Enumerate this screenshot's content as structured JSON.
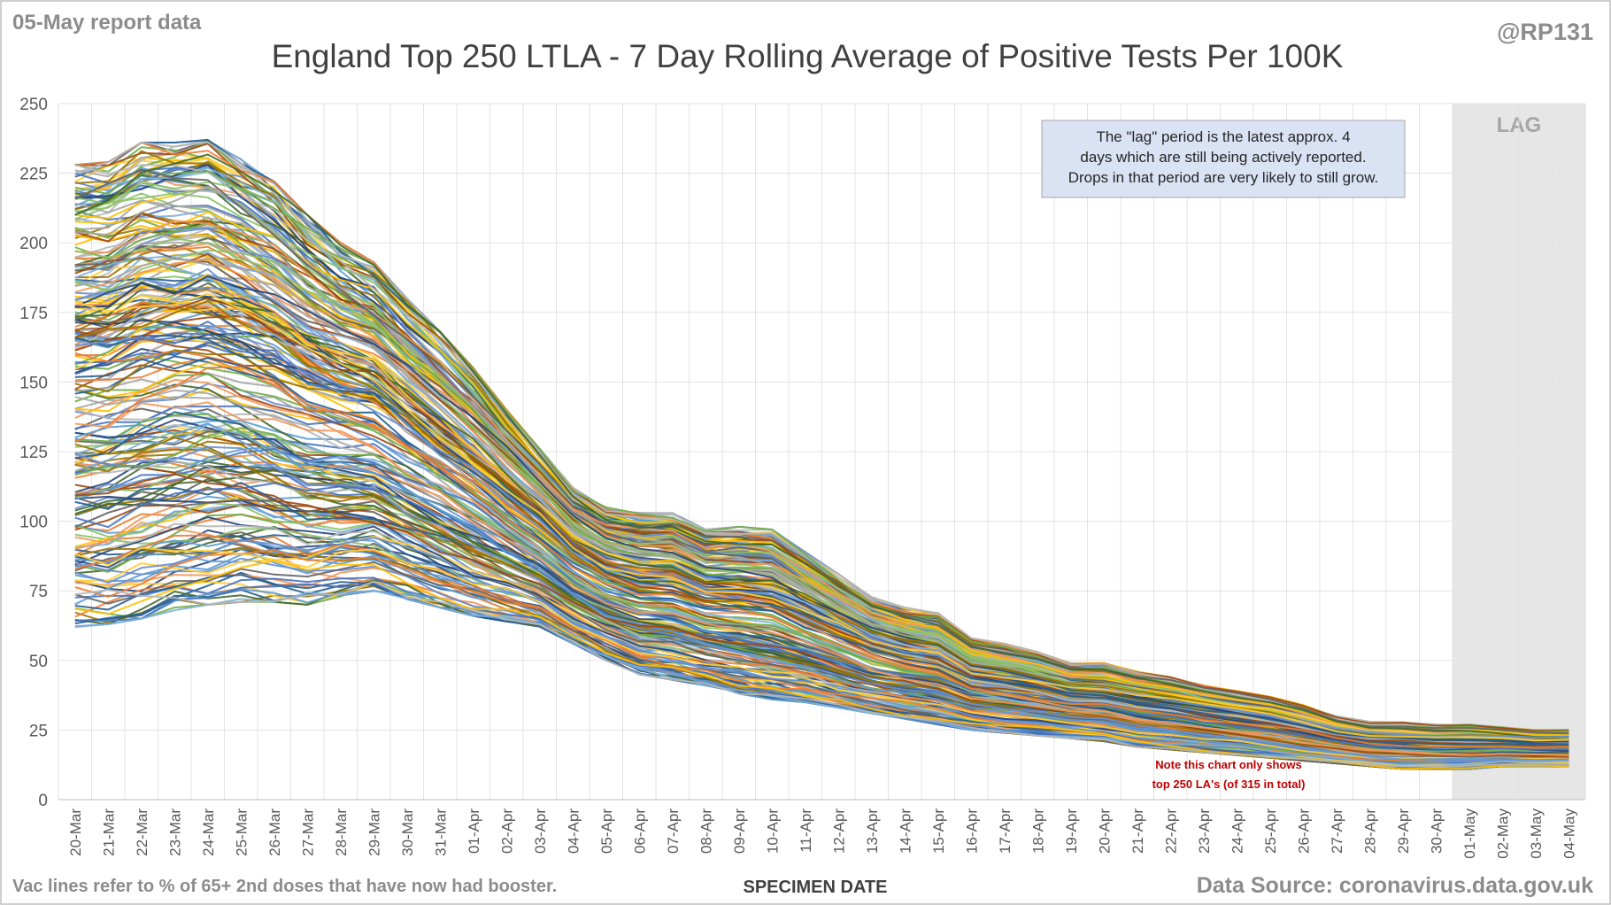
{
  "chart_data": {
    "type": "line",
    "title": "England Top 250 LTLA - 7 Day Rolling Average of Positive Tests Per 100K",
    "report_label": "05-May report data",
    "handle": "@RP131",
    "xlabel": "SPECIMEN DATE",
    "ylabel": "",
    "ylim": [
      0,
      250
    ],
    "yticks": [
      0,
      25,
      50,
      75,
      100,
      125,
      150,
      175,
      200,
      225,
      250
    ],
    "grid": "vertical and horizontal",
    "legend": "none",
    "categories": [
      "20-Mar",
      "21-Mar",
      "22-Mar",
      "23-Mar",
      "24-Mar",
      "25-Mar",
      "26-Mar",
      "27-Mar",
      "28-Mar",
      "29-Mar",
      "30-Mar",
      "31-Mar",
      "01-Apr",
      "02-Apr",
      "03-Apr",
      "04-Apr",
      "05-Apr",
      "06-Apr",
      "07-Apr",
      "08-Apr",
      "09-Apr",
      "10-Apr",
      "11-Apr",
      "12-Apr",
      "13-Apr",
      "14-Apr",
      "15-Apr",
      "16-Apr",
      "17-Apr",
      "18-Apr",
      "19-Apr",
      "20-Apr",
      "21-Apr",
      "22-Apr",
      "23-Apr",
      "24-Apr",
      "25-Apr",
      "26-Apr",
      "27-Apr",
      "28-Apr",
      "29-Apr",
      "30-Apr",
      "01-May",
      "02-May",
      "03-May",
      "04-May"
    ],
    "lag_region": {
      "label": "LAG",
      "from": "01-May",
      "to": "04-May"
    },
    "series_count": 250,
    "series_envelope": {
      "description_values": "approximate upper and lower bounds of the plotted LTLA lines per date",
      "upper": [
        228,
        229,
        236,
        236,
        237,
        230,
        222,
        210,
        200,
        193,
        180,
        168,
        155,
        140,
        126,
        112,
        105,
        103,
        103,
        97,
        98,
        97,
        89,
        81,
        73,
        69,
        67,
        58,
        56,
        53,
        49,
        49,
        46,
        44,
        41,
        39,
        37,
        34,
        30,
        28,
        28,
        27,
        27,
        26,
        25,
        25
      ],
      "lower": [
        62,
        63,
        65,
        68,
        70,
        71,
        71,
        70,
        73,
        75,
        72,
        69,
        66,
        64,
        62,
        56,
        50,
        45,
        43,
        41,
        38,
        36,
        35,
        33,
        31,
        29,
        27,
        25,
        24,
        23,
        22,
        21,
        19,
        18,
        17,
        16,
        15,
        14,
        13,
        12,
        11,
        11,
        11,
        12,
        12,
        12
      ]
    },
    "series_palette": [
      "#4472c4",
      "#ed7d31",
      "#a5a5a5",
      "#ffc000",
      "#5b9bd5",
      "#70ad47",
      "#264478",
      "#9e480e",
      "#636363",
      "#997300",
      "#255e91",
      "#43682b",
      "#698ed0",
      "#f1975a",
      "#b7b7b7",
      "#ffcd33",
      "#7cafdd",
      "#8cc168"
    ],
    "annotations": {
      "lag_note": "The \"lag\" period is the latest approx. 4 days which are still being actively reported. Drops in that period are very likely to still grow.",
      "top_note_line1": "Note this chart only shows",
      "top_note_line2": "top 250 LA's (of 315 in total)",
      "vac_note": "Vac lines refer to % of 65+ 2nd doses that have now had booster.",
      "source": "Data Source: coronavirus.data.gov.uk"
    },
    "colors": {
      "lag_shade": "#e6e6e6",
      "note_box_fill": "#dae3f3",
      "note_text_red": "#c00000",
      "muted_text": "#8c8c8c",
      "title_text": "#404040"
    }
  }
}
